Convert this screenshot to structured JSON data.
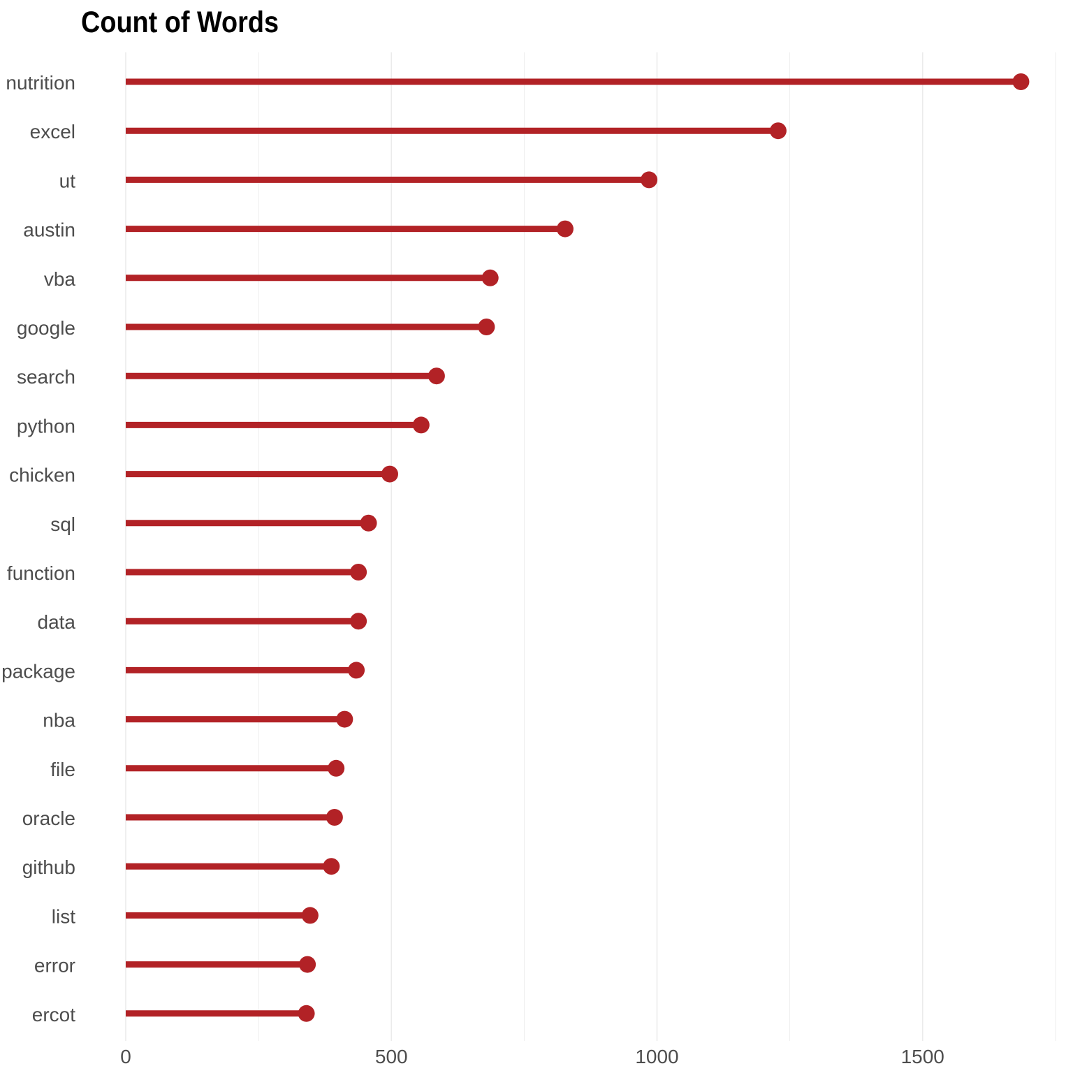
{
  "chart_data": {
    "type": "lollipop",
    "title": "Count of Words",
    "xlabel": "",
    "ylabel": "",
    "categories": [
      "nutrition",
      "excel",
      "ut",
      "austin",
      "vba",
      "google",
      "search",
      "python",
      "chicken",
      "sql",
      "function",
      "data",
      "package",
      "nba",
      "file",
      "oracle",
      "github",
      "list",
      "error",
      "ercot"
    ],
    "values": [
      1685,
      1228,
      985,
      827,
      686,
      679,
      585,
      556,
      497,
      457,
      438,
      438,
      434,
      412,
      396,
      393,
      387,
      347,
      342,
      340
    ],
    "xlim": [
      0,
      1750
    ],
    "xticks": [
      0,
      500,
      1000,
      1500
    ],
    "grid": true,
    "color": "#b22226",
    "gridline_color": "#ebebeb"
  }
}
